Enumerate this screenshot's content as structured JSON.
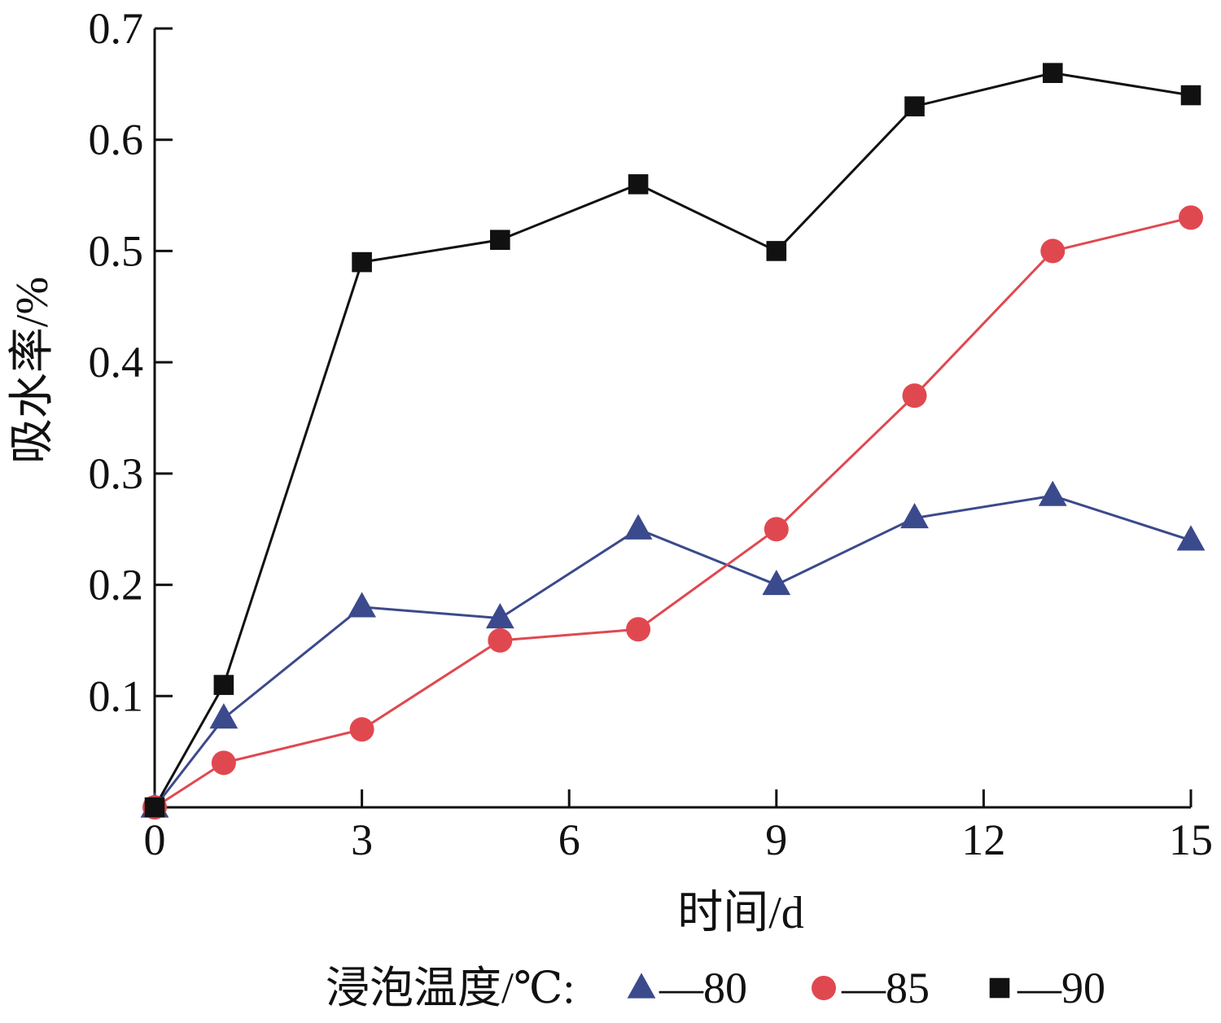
{
  "chart_data": {
    "type": "line",
    "xlabel": "时间/d",
    "ylabel": "吸水率/%",
    "xlim": [
      0,
      15
    ],
    "ylim": [
      0,
      0.7
    ],
    "x_ticks": [
      0,
      3,
      6,
      9,
      12,
      15
    ],
    "x_tick_labels": [
      "0",
      "3",
      "6",
      "9",
      "12",
      "15"
    ],
    "y_ticks": [
      0.1,
      0.2,
      0.3,
      0.4,
      0.5,
      0.6,
      0.7
    ],
    "y_tick_labels": [
      "0.1",
      "0.2",
      "0.3",
      "0.4",
      "0.5",
      "0.6",
      "0.7"
    ],
    "grid": false,
    "legend": {
      "placement": "bottom",
      "title": "浸泡温度/℃:"
    },
    "series": [
      {
        "name": "80",
        "legend_label": "—80",
        "color": "#3b4a8c",
        "marker": "triangle",
        "x": [
          0,
          1,
          3,
          5,
          7,
          9,
          11,
          13,
          15
        ],
        "y": [
          0,
          0.08,
          0.18,
          0.17,
          0.25,
          0.2,
          0.26,
          0.28,
          0.24
        ]
      },
      {
        "name": "85",
        "legend_label": "—85",
        "color": "#e04850",
        "marker": "circle",
        "x": [
          0,
          1,
          3,
          5,
          7,
          9,
          11,
          13,
          15
        ],
        "y": [
          0,
          0.04,
          0.07,
          0.15,
          0.16,
          0.25,
          0.37,
          0.5,
          0.53
        ]
      },
      {
        "name": "90",
        "legend_label": "—90",
        "color": "#111111",
        "marker": "square",
        "x": [
          0,
          1,
          3,
          5,
          7,
          9,
          11,
          13,
          15
        ],
        "y": [
          0,
          0.11,
          0.49,
          0.51,
          0.56,
          0.5,
          0.63,
          0.66,
          0.64
        ]
      }
    ]
  }
}
